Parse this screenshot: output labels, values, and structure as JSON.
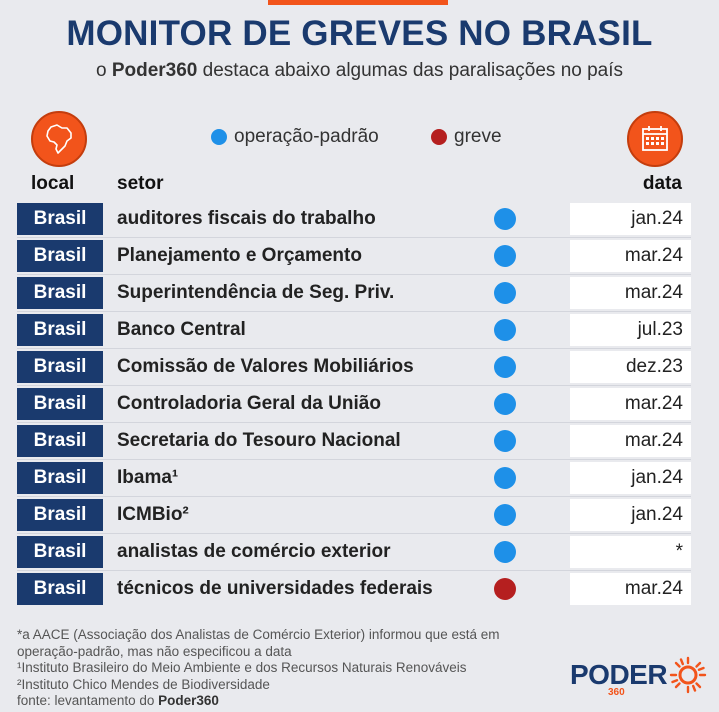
{
  "header": {
    "title": "MONITOR DE GREVES NO BRASIL",
    "subtitle_prefix": "o ",
    "subtitle_brand": "Poder360",
    "subtitle_suffix": " destaca abaixo algumas das paralisações no país"
  },
  "legend": {
    "operacao": "operação-padrão",
    "greve": "greve"
  },
  "columns": {
    "local": "local",
    "setor": "setor",
    "data": "data"
  },
  "colors": {
    "accent": "#f2541b",
    "navy": "#1a3a6e",
    "operacao": "#1e90e8",
    "greve": "#b51f1f"
  },
  "icons": {
    "local": "brazil-map-icon",
    "data": "calendar-icon"
  },
  "rows": [
    {
      "local": "Brasil",
      "setor": "auditores fiscais do trabalho",
      "status": "operacao",
      "data": "jan.24"
    },
    {
      "local": "Brasil",
      "setor": "Planejamento e Orçamento",
      "status": "operacao",
      "data": "mar.24"
    },
    {
      "local": "Brasil",
      "setor": "Superintendência de Seg. Priv.",
      "status": "operacao",
      "data": "mar.24"
    },
    {
      "local": "Brasil",
      "setor": "Banco Central",
      "status": "operacao",
      "data": "jul.23"
    },
    {
      "local": "Brasil",
      "setor": "Comissão de Valores Mobiliários",
      "status": "operacao",
      "data": "dez.23"
    },
    {
      "local": "Brasil",
      "setor": "Controladoria Geral da União",
      "status": "operacao",
      "data": "mar.24"
    },
    {
      "local": "Brasil",
      "setor": "Secretaria do Tesouro Nacional",
      "status": "operacao",
      "data": "mar.24"
    },
    {
      "local": "Brasil",
      "setor": "Ibama¹",
      "status": "operacao",
      "data": "jan.24"
    },
    {
      "local": "Brasil",
      "setor": "ICMBio²",
      "status": "operacao",
      "data": "jan.24"
    },
    {
      "local": "Brasil",
      "setor": "analistas de comércio exterior",
      "status": "operacao",
      "data": "*"
    },
    {
      "local": "Brasil",
      "setor": "técnicos de universidades federais",
      "status": "greve",
      "data": "mar.24"
    }
  ],
  "footer": {
    "note1": "*a AACE (Associação dos Analistas de Comércio Exterior) informou que está em",
    "note2": "operação-padrão, mas não especificou a data",
    "note3": "¹Instituto Brasileiro do Meio Ambiente e dos Recursos Naturais Renováveis",
    "note4": "²Instituto Chico Mendes de Biodiversidade",
    "source_prefix": "fonte: levantamento do ",
    "source_brand": "Poder360"
  },
  "logo": {
    "word": "PODER",
    "number": "360"
  }
}
